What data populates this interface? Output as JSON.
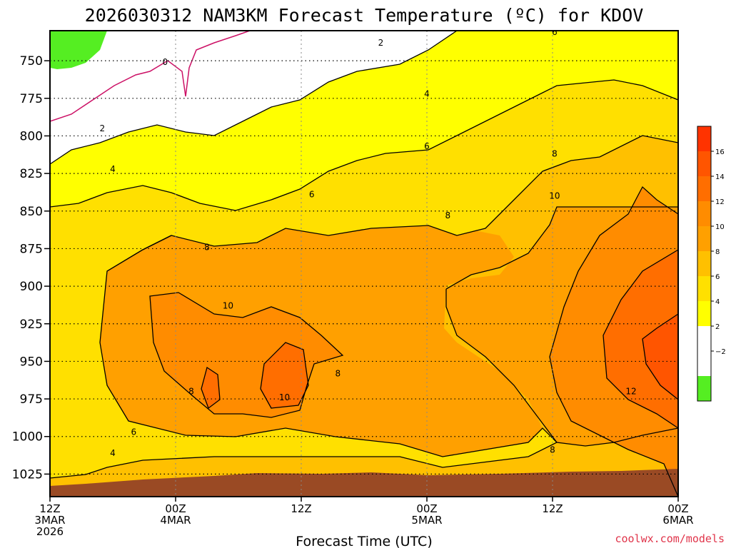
{
  "title": "2026030312 NAM3KM Forecast Temperature (ºC) for KDOV",
  "credit": "coolwx.com/models",
  "chart_data": {
    "type": "heatmap",
    "title": "2026030312 NAM3KM Forecast Temperature (ºC) for KDOV",
    "xlabel": "Forecast Time (UTC)",
    "x_ticks": [
      {
        "hour": 0,
        "lines": [
          "12Z",
          "3MAR",
          "2026"
        ]
      },
      {
        "hour": 12,
        "lines": [
          "00Z",
          "4MAR"
        ]
      },
      {
        "hour": 24,
        "lines": [
          "12Z"
        ]
      },
      {
        "hour": 36,
        "lines": [
          "00Z",
          "5MAR"
        ]
      },
      {
        "hour": 48,
        "lines": [
          "12Z"
        ]
      },
      {
        "hour": 60,
        "lines": [
          "00Z",
          "6MAR"
        ]
      }
    ],
    "x_range_hours": [
      0,
      60
    ],
    "y_ticks": [
      "750",
      "775",
      "800",
      "825",
      "850",
      "875",
      "900",
      "925",
      "950",
      "975",
      "1000",
      "1025"
    ],
    "y_range_hPa": [
      730,
      1040
    ],
    "grid": true,
    "colorbar_ticks": [
      "16",
      "14",
      "12",
      "10",
      "8",
      "6",
      "4",
      "2",
      "−2"
    ],
    "colors": {
      "lt_-2": "#55ee22",
      "-2_0": "#ffffff",
      "0_2": "#ffffff",
      "2_4": "#ffff00",
      "4_6": "#ffe000",
      "6_8": "#ffc000",
      "8_10": "#ffa000",
      "10_12": "#ff8c00",
      "12_14": "#ff6e00",
      "14_16": "#ff5500",
      "gt_16": "#ff3300",
      "ground": "#9a4a24",
      "zero_isotherm": "#cc1166"
    },
    "contour_labels": [
      {
        "text": "0",
        "hour": 11.0,
        "p": 751
      },
      {
        "text": "2",
        "hour": 31.6,
        "p": 738
      },
      {
        "text": "6",
        "hour": 48.2,
        "p": 731
      },
      {
        "text": "2",
        "hour": 5.0,
        "p": 795
      },
      {
        "text": "4",
        "hour": 36.0,
        "p": 772
      },
      {
        "text": "4",
        "hour": 6.0,
        "p": 822
      },
      {
        "text": "6",
        "hour": 36.0,
        "p": 807
      },
      {
        "text": "8",
        "hour": 48.2,
        "p": 812
      },
      {
        "text": "6",
        "hour": 25.0,
        "p": 839
      },
      {
        "text": "8",
        "hour": 38.0,
        "p": 853
      },
      {
        "text": "10",
        "hour": 48.2,
        "p": 840
      },
      {
        "text": "8",
        "hour": 15.0,
        "p": 874
      },
      {
        "text": "10",
        "hour": 17.0,
        "p": 913
      },
      {
        "text": "8",
        "hour": 27.5,
        "p": 958
      },
      {
        "text": "8",
        "hour": 13.5,
        "p": 970
      },
      {
        "text": "10",
        "hour": 22.4,
        "p": 974
      },
      {
        "text": "12",
        "hour": 55.5,
        "p": 970
      },
      {
        "text": "6",
        "hour": 8.0,
        "p": 997
      },
      {
        "text": "4",
        "hour": 6.0,
        "p": 1011
      },
      {
        "text": "8",
        "hour": 48.0,
        "p": 1009
      }
    ]
  }
}
